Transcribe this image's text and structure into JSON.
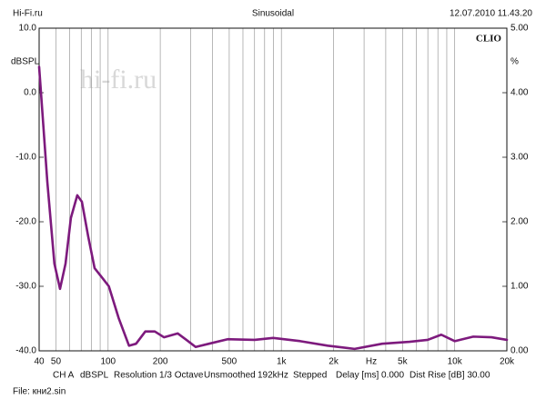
{
  "header": {
    "left": "Hi-Fi.ru",
    "center": "Sinusoidal",
    "right": "12.07.2010 11.43.20"
  },
  "brand": "CLIO",
  "watermark": "hi-fi.ru",
  "chart_data": {
    "type": "line",
    "y_label": "dBSPL",
    "y2_label": "%",
    "x_unit": "Hz",
    "log_x": true,
    "xlim": [
      40,
      20000
    ],
    "xticks": [
      40,
      50,
      100,
      200,
      500,
      {
        "value": 1000,
        "label": "1k"
      },
      {
        "value": 2000,
        "label": "2k"
      },
      {
        "value": 5000,
        "label": "5k"
      },
      {
        "value": 10000,
        "label": "10k"
      },
      {
        "value": 20000,
        "label": "20k"
      }
    ],
    "x_minor_grid": [
      60,
      70,
      80,
      90,
      300,
      400,
      600,
      700,
      800,
      900,
      3000,
      4000,
      6000,
      7000,
      8000,
      9000
    ],
    "ylim": [
      -40,
      10
    ],
    "yticks": [
      {
        "value": 10,
        "label": "10.0"
      },
      {
        "value": 0,
        "label": "0.0"
      },
      {
        "value": -10,
        "label": "-10.0"
      },
      {
        "value": -20,
        "label": "-20.0"
      },
      {
        "value": -30,
        "label": "-30.0"
      },
      {
        "value": -40,
        "label": "-40.0"
      }
    ],
    "y2lim": [
      0,
      5
    ],
    "y2ticks": [
      {
        "value": 5,
        "label": "5.00"
      },
      {
        "value": 4,
        "label": "4.00"
      },
      {
        "value": 3,
        "label": "3.00"
      },
      {
        "value": 2,
        "label": "2.00"
      },
      {
        "value": 1,
        "label": "1.00"
      },
      {
        "value": 0,
        "label": "0.00"
      }
    ],
    "series": [
      {
        "name": "CH A",
        "color": "#7d1a7d",
        "x": [
          40,
          41,
          44.6,
          49,
          52.8,
          56.8,
          61,
          66.4,
          70.6,
          76.8,
          83.6,
          92,
          101,
          115,
          132,
          145,
          164,
          186,
          210,
          252,
          283,
          320,
          382,
          489,
          701,
          896,
          1286,
          1846,
          2644,
          3818,
          5486,
          6983,
          8364,
          10000,
          12800,
          16300,
          20000
        ],
        "values": [
          4,
          0,
          -13.8,
          -26.5,
          -30.4,
          -26.5,
          -19.4,
          -15.9,
          -16.9,
          -22.3,
          -27.2,
          -28.6,
          -30,
          -34.9,
          -39.2,
          -38.9,
          -37,
          -37,
          -37.9,
          -37.3,
          -38.3,
          -39.4,
          -38.9,
          -38.2,
          -38.3,
          -38,
          -38.5,
          -39.2,
          -39.7,
          -38.9,
          -38.6,
          -38.3,
          -37.5,
          -38.5,
          -37.8,
          -37.9,
          -38.3
        ]
      }
    ]
  },
  "status": [
    "CH A",
    "dBSPL",
    "Resolution 1/3 Octave",
    "Unsmoothed",
    "192kHz",
    "Stepped",
    "Delay [ms] 0.000",
    "Dist Rise [dB] 30.00"
  ],
  "file": "File: кни2.sin"
}
